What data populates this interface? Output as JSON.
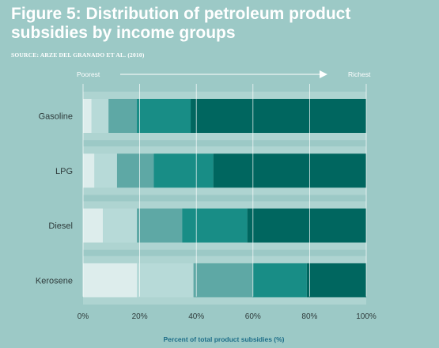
{
  "header": {
    "title": "Figure 5: Distribution of petroleum product subsidies by income groups",
    "source": "SOURCE: ARZE DEL GRANADO ET AL. (2010)"
  },
  "direction": {
    "left": "Poorest",
    "right": "Richest"
  },
  "colors": {
    "background": "#9cc9c6",
    "band": "#aed4d1",
    "segments": [
      "#ddedec",
      "#b7dad8",
      "#5ea8a5",
      "#188d86",
      "#00665f"
    ],
    "text": "#2e3b3b",
    "xlabel": "#1d6d88"
  },
  "chart_data": {
    "type": "bar",
    "orientation": "horizontal",
    "stacked": true,
    "categories": [
      "Gasoline",
      "LPG",
      "Diesel",
      "Kerosene"
    ],
    "series": [
      {
        "values": [
          3,
          4,
          7,
          19
        ]
      },
      {
        "values": [
          6,
          8,
          12,
          20
        ]
      },
      {
        "values": [
          10,
          13,
          16,
          21
        ]
      },
      {
        "values": [
          19,
          21,
          23,
          19
        ]
      },
      {
        "values": [
          62,
          54,
          42,
          21
        ]
      }
    ],
    "xticks": [
      "0%",
      "20%",
      "40%",
      "60%",
      "80%",
      "100%"
    ],
    "xlim": [
      0,
      100
    ],
    "xlabel": "Percent of total product subsidies (%)",
    "grid": true
  }
}
